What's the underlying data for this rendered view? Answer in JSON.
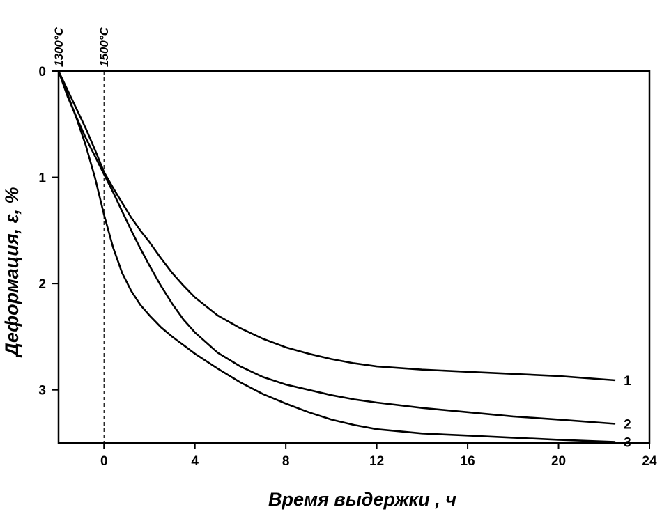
{
  "chart_data": {
    "type": "line",
    "xlabel": "Время  выдержки , ч",
    "ylabel": "Деформация, ε, %",
    "xlim": [
      -2,
      24
    ],
    "ylim": [
      0,
      3.5
    ],
    "y_inverted": true,
    "x_ticks": [
      0,
      4,
      8,
      12,
      16,
      20,
      24
    ],
    "x_tick_labels": [
      "0",
      "4",
      "8",
      "12",
      "16",
      "20",
      "24"
    ],
    "y_ticks": [
      0,
      1,
      2,
      3
    ],
    "y_tick_labels": [
      "0",
      "1",
      "2",
      "3"
    ],
    "grid": false,
    "legend": "none",
    "annotations": [
      {
        "text": "1300°C",
        "x": -2
      },
      {
        "text": "1500°C",
        "x": 0,
        "dashed_line": true
      }
    ],
    "series": [
      {
        "name": "1",
        "color": "#000000",
        "x": [
          -2,
          -1.6,
          -1.2,
          -0.8,
          -0.4,
          0,
          0.4,
          0.8,
          1.2,
          1.6,
          2,
          2.5,
          3,
          3.5,
          4,
          5,
          6,
          7,
          8,
          9,
          10,
          11,
          12,
          14,
          16,
          18,
          20,
          22.5
        ],
        "y": [
          0,
          0.18,
          0.36,
          0.54,
          0.74,
          0.95,
          1.1,
          1.24,
          1.38,
          1.5,
          1.61,
          1.76,
          1.9,
          2.02,
          2.13,
          2.3,
          2.42,
          2.52,
          2.6,
          2.66,
          2.71,
          2.75,
          2.78,
          2.81,
          2.83,
          2.85,
          2.87,
          2.91
        ]
      },
      {
        "name": "2",
        "color": "#000000",
        "x": [
          -2,
          -1.6,
          -1.2,
          -0.8,
          -0.4,
          0,
          0.4,
          0.8,
          1.2,
          1.6,
          2,
          2.5,
          3,
          3.5,
          4,
          5,
          6,
          7,
          8,
          9,
          10,
          11,
          12,
          14,
          16,
          18,
          20,
          22.5
        ],
        "y": [
          0,
          0.24,
          0.44,
          0.63,
          0.8,
          0.97,
          1.14,
          1.32,
          1.5,
          1.67,
          1.83,
          2.02,
          2.19,
          2.34,
          2.46,
          2.65,
          2.78,
          2.88,
          2.95,
          3.0,
          3.05,
          3.09,
          3.12,
          3.17,
          3.21,
          3.25,
          3.28,
          3.32
        ]
      },
      {
        "name": "3",
        "color": "#000000",
        "x": [
          -2,
          -1.6,
          -1.2,
          -0.8,
          -0.4,
          0,
          0.4,
          0.8,
          1.2,
          1.6,
          2,
          2.5,
          3,
          3.5,
          4,
          5,
          6,
          7,
          8,
          9,
          10,
          11,
          12,
          14,
          16,
          18,
          20,
          22.5
        ],
        "y": [
          0,
          0.22,
          0.45,
          0.7,
          1.0,
          1.35,
          1.66,
          1.9,
          2.07,
          2.2,
          2.3,
          2.41,
          2.5,
          2.58,
          2.66,
          2.8,
          2.93,
          3.04,
          3.13,
          3.21,
          3.28,
          3.33,
          3.37,
          3.41,
          3.43,
          3.45,
          3.47,
          3.49
        ]
      }
    ]
  }
}
